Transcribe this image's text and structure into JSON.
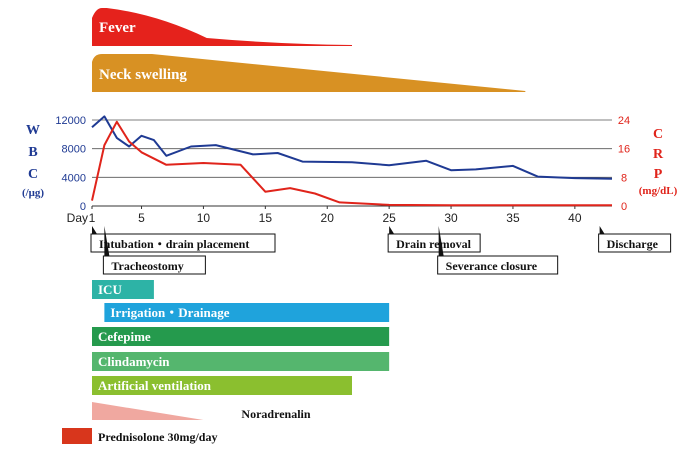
{
  "chart_data": {
    "type": "line",
    "xlabel": "Day",
    "x_ticks": [
      1,
      5,
      10,
      15,
      20,
      25,
      30,
      35,
      40
    ],
    "xlim": [
      1,
      43
    ],
    "left_axis": {
      "label": [
        "W",
        "B",
        "C",
        "(/μg)"
      ],
      "ylim": [
        0,
        12000
      ],
      "ticks": [
        "0",
        "4000",
        "8000",
        "12000"
      ],
      "tick_values": [
        0,
        4000,
        8000,
        12000
      ],
      "color": "#1f3a93"
    },
    "right_axis": {
      "label": [
        "C",
        "R",
        "P",
        "(mg/dL)"
      ],
      "ylim": [
        0,
        24
      ],
      "ticks": [
        "0",
        "8",
        "16",
        "24"
      ],
      "tick_values": [
        0,
        8,
        16,
        24
      ],
      "color": "#e0241b"
    },
    "grid": true,
    "series": [
      {
        "name": "WBC",
        "axis": "left",
        "color": "#1f3a93",
        "x": [
          1,
          2,
          3,
          4,
          5,
          6,
          7,
          9,
          11,
          14,
          16,
          18,
          22,
          25,
          28,
          30,
          32,
          35,
          37,
          40,
          43
        ],
        "y": [
          11000,
          12500,
          9500,
          8300,
          9800,
          9200,
          7000,
          8300,
          8500,
          7200,
          7400,
          6200,
          6100,
          5700,
          6300,
          5000,
          5100,
          5600,
          4100,
          3900,
          3800
        ]
      },
      {
        "name": "CRP",
        "axis": "right",
        "color": "#e0241b",
        "x": [
          1,
          2,
          3,
          4,
          5,
          7,
          10,
          13,
          15,
          17,
          19,
          21,
          25,
          30,
          35,
          43
        ],
        "y": [
          1.5,
          17,
          23.5,
          18,
          15,
          11.5,
          12,
          11.5,
          4,
          5,
          3.5,
          1,
          0.3,
          0.2,
          0.2,
          0.2
        ]
      }
    ],
    "top_bars": [
      {
        "label": "Fever",
        "start_day": 1,
        "end_day": 22,
        "color": "#e5221c",
        "shape": "peak"
      },
      {
        "label": "Neck swelling",
        "start_day": 1,
        "end_day": 36,
        "color": "#d89123",
        "shape": "decreasing"
      }
    ],
    "events": [
      {
        "label": "Intubation・drain placement",
        "day": 1
      },
      {
        "label": "Tracheostomy",
        "day": 2
      },
      {
        "label": "Drain removal",
        "day": 25
      },
      {
        "label": "Severance closure",
        "day": 29
      },
      {
        "label": "Discharge",
        "day": 42
      }
    ],
    "treatments": [
      {
        "label": "ICU",
        "start_day": 1,
        "end_day": 6,
        "color": "#2db3a6"
      },
      {
        "label": "Irrigation・Drainage",
        "start_day": 2,
        "end_day": 25,
        "color": "#1fa3dc"
      },
      {
        "label": "Cefepime",
        "start_day": 1,
        "end_day": 25,
        "color": "#259a4d"
      },
      {
        "label": "Clindamycin",
        "start_day": 1,
        "end_day": 25,
        "color": "#55b66e"
      },
      {
        "label": "Artificial ventilation",
        "start_day": 1,
        "end_day": 22,
        "color": "#8bbf2f"
      },
      {
        "label": "Noradrenalin",
        "start_day": 1,
        "end_day": 10,
        "color": "#f0a8a0",
        "shape": "tapering"
      }
    ],
    "legend": [
      {
        "label": "Prednisolone 30mg/day",
        "color": "#d8361c"
      }
    ]
  }
}
